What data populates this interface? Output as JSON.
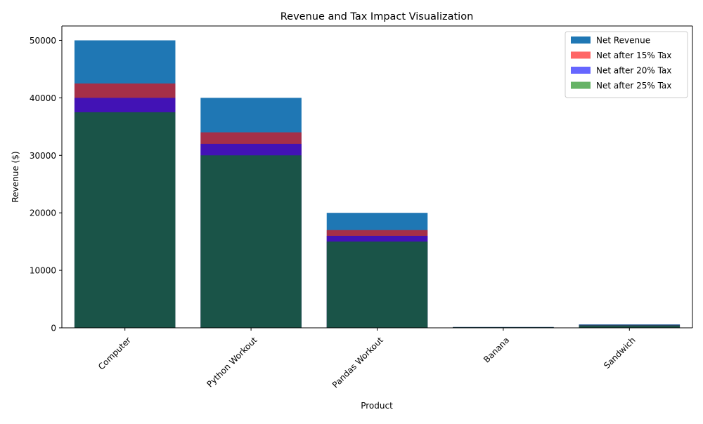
{
  "chart_data": {
    "type": "bar",
    "title": "Revenue and Tax Impact Visualization",
    "xlabel": "Product",
    "ylabel": "Revenue ($)",
    "ylim": [
      0,
      52500
    ],
    "yticks": [
      0,
      10000,
      20000,
      30000,
      40000,
      50000
    ],
    "categories": [
      "Computer",
      "Python Workout",
      "Pandas Workout",
      "Banana",
      "Sandwich"
    ],
    "series": [
      {
        "name": "Net Revenue",
        "color": "#1f77b4",
        "opacity": 1.0,
        "values": [
          50000,
          40000,
          20000,
          150,
          600
        ]
      },
      {
        "name": "Net after 15% Tax",
        "color": "#ff0000",
        "opacity": 0.6,
        "values": [
          42500,
          34000,
          17000,
          127.5,
          510
        ]
      },
      {
        "name": "Net after 20% Tax",
        "color": "#0000ff",
        "opacity": 0.6,
        "values": [
          40000,
          32000,
          16000,
          120,
          480
        ]
      },
      {
        "name": "Net after 25% Tax",
        "color": "#008000",
        "opacity": 0.6,
        "values": [
          37500,
          30000,
          15000,
          112.5,
          450
        ]
      }
    ],
    "grid": false,
    "legend_position": "top-right"
  }
}
